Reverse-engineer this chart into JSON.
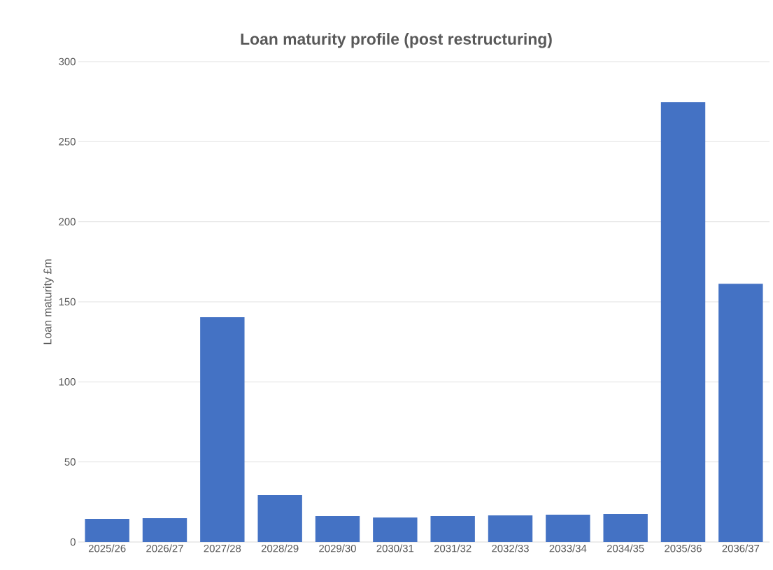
{
  "chart_data": {
    "type": "bar",
    "title": "Loan maturity profile (post restructuring)",
    "ylabel": "Loan maturity £m",
    "categories": [
      "2025/26",
      "2026/27",
      "2027/28",
      "2028/29",
      "2029/30",
      "2030/31",
      "2031/32",
      "2032/33",
      "2033/34",
      "2034/35",
      "2035/36",
      "2036/37"
    ],
    "values": [
      14.4,
      14.9,
      140.4,
      29.3,
      16.2,
      15.3,
      16.2,
      16.6,
      17.1,
      17.5,
      274.6,
      161.3
    ],
    "color": "#4472c4",
    "ylim": [
      0,
      300
    ],
    "yticks": [
      0,
      50,
      100,
      150,
      200,
      250,
      300
    ],
    "grid": "y"
  }
}
